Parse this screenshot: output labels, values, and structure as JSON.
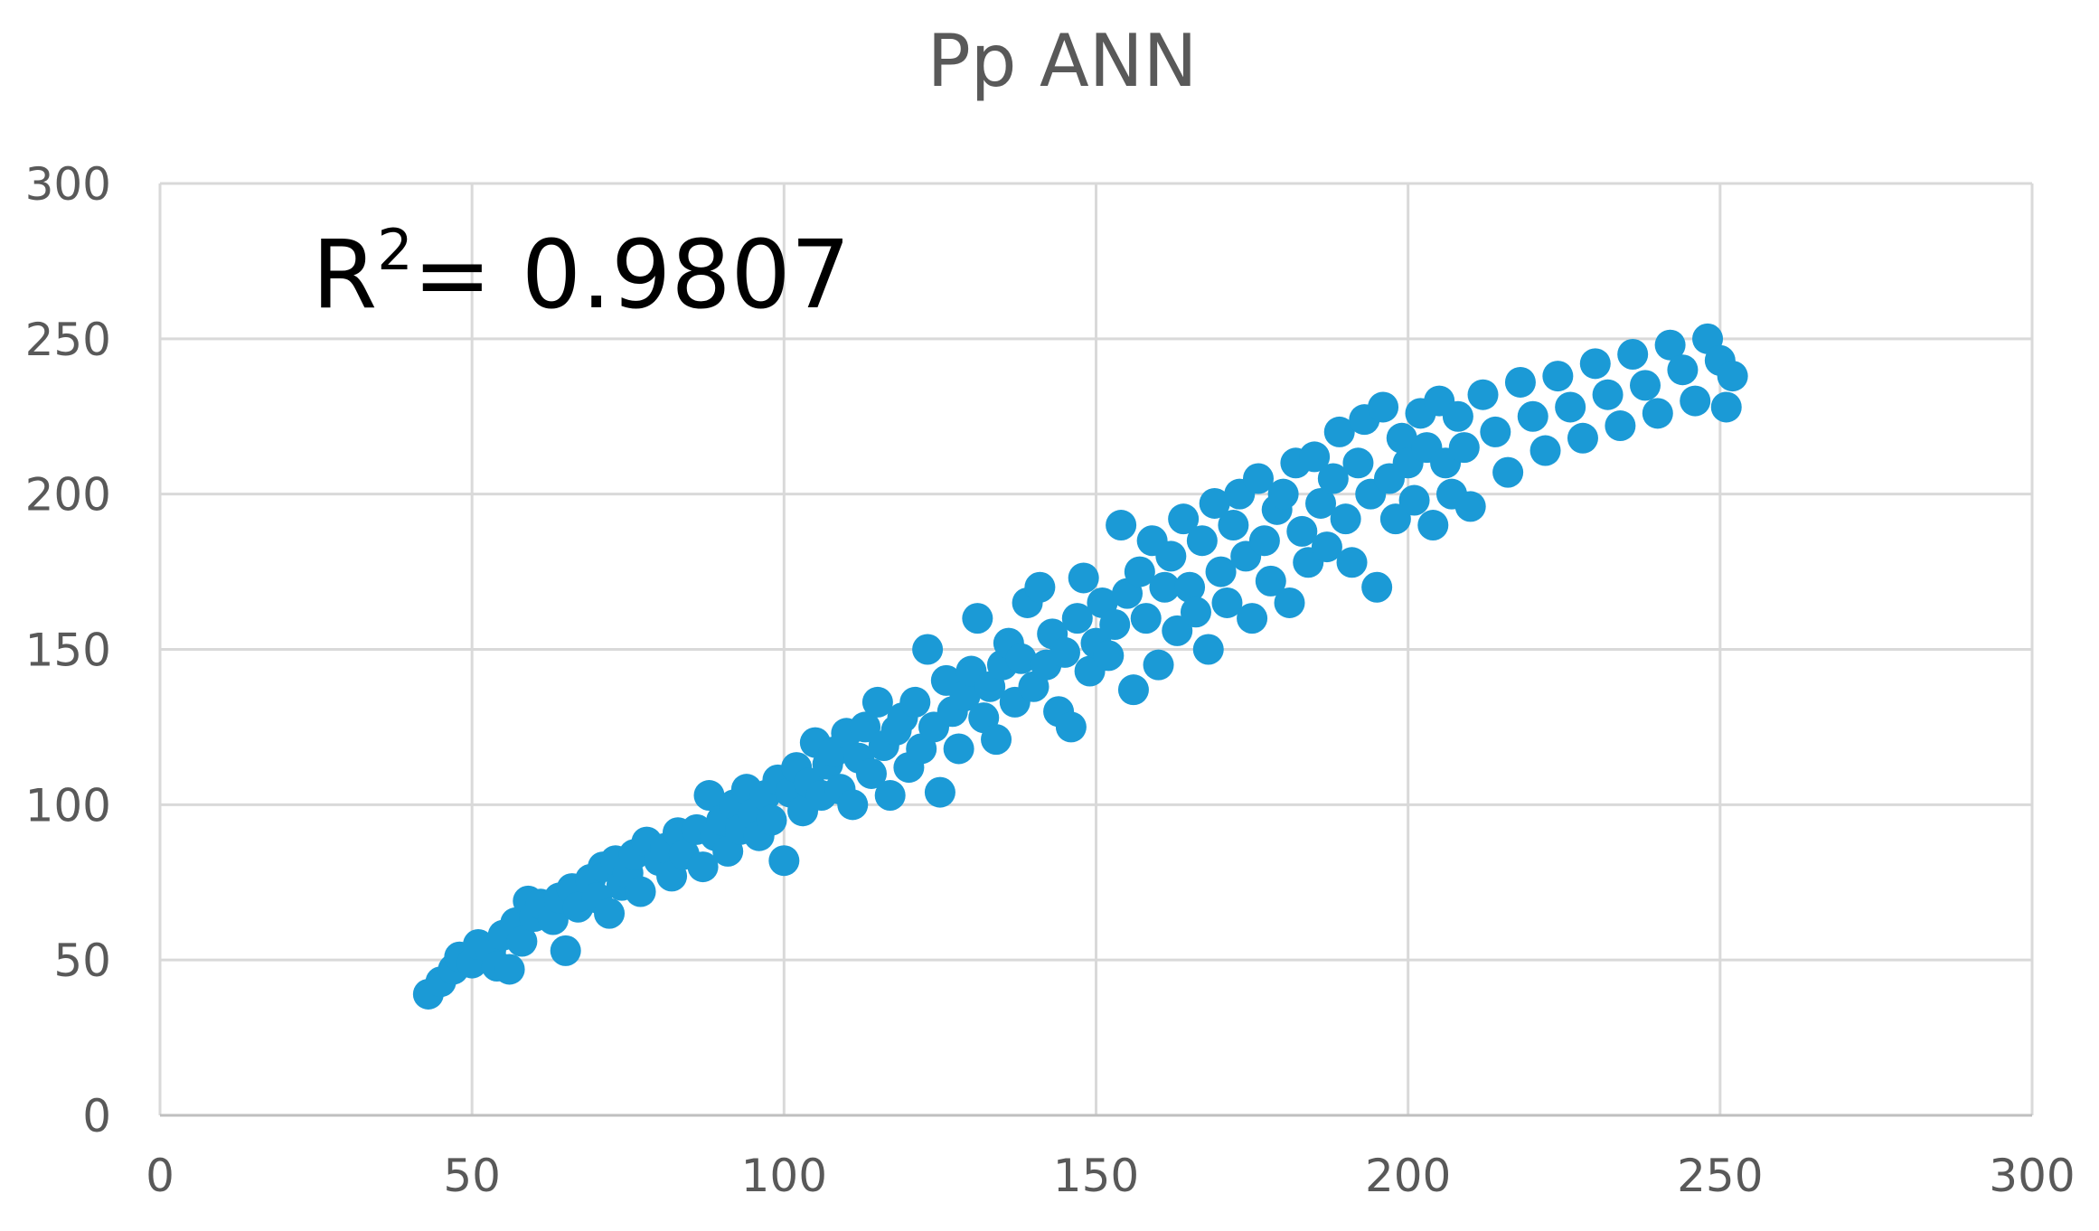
{
  "chart_data": {
    "type": "scatter",
    "title": "Pp ANN",
    "xlabel": "",
    "ylabel": "",
    "xlim": [
      0,
      300
    ],
    "ylim": [
      0,
      300
    ],
    "x_ticks": [
      0,
      50,
      100,
      150,
      200,
      250,
      300
    ],
    "y_ticks": [
      0,
      50,
      100,
      150,
      200,
      250,
      300
    ],
    "grid": true,
    "legend": "none",
    "annotation": {
      "prefix": "R",
      "superscript": "2",
      "text": "= 0.9807"
    },
    "marker_color": "#1B9AD6",
    "series": [
      {
        "color": "#1B9AD6",
        "points": [
          [
            43,
            39
          ],
          [
            45,
            43
          ],
          [
            47,
            47
          ],
          [
            48,
            51
          ],
          [
            50,
            49
          ],
          [
            51,
            55
          ],
          [
            53,
            53
          ],
          [
            54,
            48
          ],
          [
            55,
            58
          ],
          [
            56,
            47
          ],
          [
            57,
            62
          ],
          [
            58,
            56
          ],
          [
            59,
            69
          ],
          [
            60,
            64
          ],
          [
            61,
            68
          ],
          [
            63,
            63
          ],
          [
            64,
            70
          ],
          [
            65,
            53
          ],
          [
            66,
            73
          ],
          [
            67,
            67
          ],
          [
            69,
            76
          ],
          [
            70,
            70
          ],
          [
            71,
            80
          ],
          [
            72,
            65
          ],
          [
            73,
            82
          ],
          [
            74,
            74
          ],
          [
            75,
            78
          ],
          [
            76,
            84
          ],
          [
            77,
            72
          ],
          [
            78,
            88
          ],
          [
            80,
            82
          ],
          [
            81,
            86
          ],
          [
            82,
            77
          ],
          [
            83,
            91
          ],
          [
            84,
            84
          ],
          [
            86,
            92
          ],
          [
            87,
            80
          ],
          [
            88,
            103
          ],
          [
            89,
            90
          ],
          [
            90,
            95
          ],
          [
            91,
            85
          ],
          [
            92,
            100
          ],
          [
            93,
            92
          ],
          [
            94,
            105
          ],
          [
            95,
            97
          ],
          [
            96,
            90
          ],
          [
            97,
            103
          ],
          [
            98,
            95
          ],
          [
            99,
            108
          ],
          [
            100,
            82
          ],
          [
            101,
            104
          ],
          [
            102,
            112
          ],
          [
            103,
            98
          ],
          [
            104,
            107
          ],
          [
            105,
            120
          ],
          [
            106,
            103
          ],
          [
            107,
            113
          ],
          [
            108,
            117
          ],
          [
            109,
            105
          ],
          [
            110,
            123
          ],
          [
            111,
            100
          ],
          [
            112,
            115
          ],
          [
            113,
            125
          ],
          [
            114,
            110
          ],
          [
            115,
            133
          ],
          [
            116,
            119
          ],
          [
            117,
            103
          ],
          [
            118,
            124
          ],
          [
            119,
            128
          ],
          [
            120,
            112
          ],
          [
            121,
            133
          ],
          [
            122,
            118
          ],
          [
            123,
            150
          ],
          [
            124,
            125
          ],
          [
            125,
            104
          ],
          [
            126,
            140
          ],
          [
            127,
            130
          ],
          [
            128,
            118
          ],
          [
            129,
            135
          ],
          [
            130,
            143
          ],
          [
            131,
            160
          ],
          [
            132,
            128
          ],
          [
            133,
            138
          ],
          [
            134,
            121
          ],
          [
            135,
            145
          ],
          [
            136,
            152
          ],
          [
            137,
            133
          ],
          [
            138,
            147
          ],
          [
            139,
            165
          ],
          [
            140,
            138
          ],
          [
            141,
            170
          ],
          [
            142,
            145
          ],
          [
            143,
            155
          ],
          [
            144,
            130
          ],
          [
            145,
            149
          ],
          [
            146,
            125
          ],
          [
            147,
            160
          ],
          [
            148,
            173
          ],
          [
            149,
            143
          ],
          [
            150,
            152
          ],
          [
            151,
            165
          ],
          [
            152,
            148
          ],
          [
            153,
            158
          ],
          [
            154,
            190
          ],
          [
            155,
            168
          ],
          [
            156,
            137
          ],
          [
            157,
            175
          ],
          [
            158,
            160
          ],
          [
            159,
            185
          ],
          [
            160,
            145
          ],
          [
            161,
            170
          ],
          [
            162,
            180
          ],
          [
            163,
            156
          ],
          [
            164,
            192
          ],
          [
            165,
            170
          ],
          [
            166,
            162
          ],
          [
            167,
            185
          ],
          [
            168,
            150
          ],
          [
            169,
            197
          ],
          [
            170,
            175
          ],
          [
            171,
            165
          ],
          [
            172,
            190
          ],
          [
            173,
            200
          ],
          [
            174,
            180
          ],
          [
            175,
            160
          ],
          [
            176,
            205
          ],
          [
            177,
            185
          ],
          [
            178,
            172
          ],
          [
            179,
            195
          ],
          [
            180,
            200
          ],
          [
            181,
            165
          ],
          [
            182,
            210
          ],
          [
            183,
            188
          ],
          [
            184,
            178
          ],
          [
            185,
            212
          ],
          [
            186,
            197
          ],
          [
            187,
            183
          ],
          [
            188,
            205
          ],
          [
            189,
            220
          ],
          [
            190,
            192
          ],
          [
            191,
            178
          ],
          [
            192,
            210
          ],
          [
            193,
            224
          ],
          [
            194,
            200
          ],
          [
            195,
            170
          ],
          [
            196,
            228
          ],
          [
            197,
            205
          ],
          [
            198,
            192
          ],
          [
            199,
            218
          ],
          [
            200,
            210
          ],
          [
            201,
            198
          ],
          [
            202,
            226
          ],
          [
            203,
            215
          ],
          [
            204,
            190
          ],
          [
            205,
            230
          ],
          [
            206,
            210
          ],
          [
            207,
            200
          ],
          [
            208,
            225
          ],
          [
            209,
            215
          ],
          [
            210,
            196
          ],
          [
            212,
            232
          ],
          [
            214,
            220
          ],
          [
            216,
            207
          ],
          [
            218,
            236
          ],
          [
            220,
            225
          ],
          [
            222,
            214
          ],
          [
            224,
            238
          ],
          [
            226,
            228
          ],
          [
            228,
            218
          ],
          [
            230,
            242
          ],
          [
            232,
            232
          ],
          [
            234,
            222
          ],
          [
            236,
            245
          ],
          [
            238,
            235
          ],
          [
            240,
            226
          ],
          [
            242,
            248
          ],
          [
            244,
            240
          ],
          [
            246,
            230
          ],
          [
            248,
            250
          ],
          [
            250,
            243
          ],
          [
            251,
            228
          ],
          [
            252,
            238
          ]
        ]
      }
    ]
  }
}
